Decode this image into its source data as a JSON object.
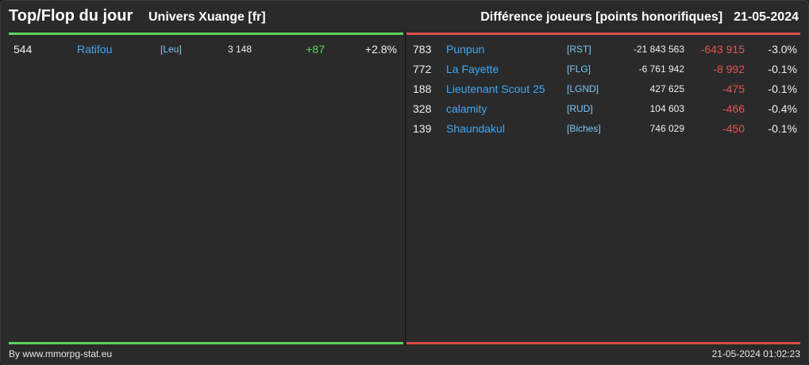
{
  "header": {
    "title": "Top/Flop du jour",
    "universe": "Univers Xuange [fr]",
    "metric": "Différence joueurs [points honorifiques]",
    "date": "21-05-2024"
  },
  "top": [
    {
      "rank": "544",
      "name": "Ratifou",
      "ally": "[Leu]",
      "points": "3 148",
      "diff": "+87",
      "pct": "+2.8%"
    }
  ],
  "flop": [
    {
      "rank": "783",
      "name": "Punpun",
      "ally": "[RST]",
      "points": "-21 843 563",
      "diff": "-643 915",
      "pct": "-3.0%"
    },
    {
      "rank": "772",
      "name": "La Fayette",
      "ally": "[FLG]",
      "points": "-6 761 942",
      "diff": "-8 992",
      "pct": "-0.1%"
    },
    {
      "rank": "188",
      "name": "Lieutenant Scout 25",
      "ally": "[LGND]",
      "points": "427 625",
      "diff": "-475",
      "pct": "-0.1%"
    },
    {
      "rank": "328",
      "name": "calamity",
      "ally": "[RUD]",
      "points": "104 603",
      "diff": "-466",
      "pct": "-0.4%"
    },
    {
      "rank": "139",
      "name": "Shaundakul",
      "ally": "[Biches]",
      "points": "746 029",
      "diff": "-450",
      "pct": "-0.1%"
    }
  ],
  "footer": {
    "credit": "By www.mmorpg-stat.eu",
    "timestamp": "21-05-2024 01:02:23"
  },
  "colors": {
    "top_accent": "#5fd35f",
    "flop_accent": "#d94c4c",
    "name_link": "#3fa9f5"
  }
}
